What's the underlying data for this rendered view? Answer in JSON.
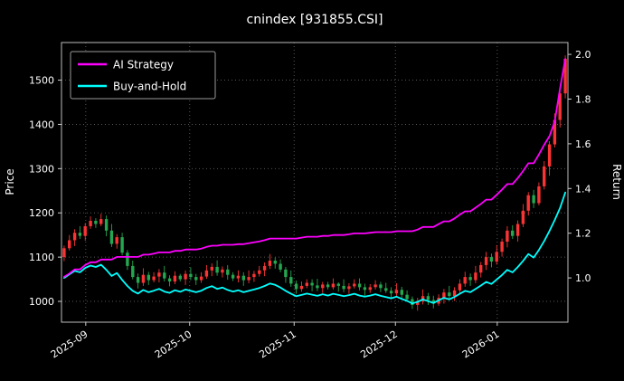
{
  "chart_data": {
    "type": "candlestick+line",
    "title": "cnindex [931855.CSI]",
    "ylabel_left": "Price",
    "ylabel_right": "Return",
    "grid": true,
    "background": "#000000",
    "price_ticks": [
      1000,
      1100,
      1200,
      1300,
      1400,
      1500
    ],
    "return_ticks": [
      1.0,
      1.2,
      1.4,
      1.6,
      1.8,
      2.0
    ],
    "price_lim": [
      953,
      1585
    ],
    "return_lim": [
      0.802,
      2.053
    ],
    "x_ticks": [
      {
        "pos": 4.1,
        "label": "2025-09"
      },
      {
        "pos": 23.8,
        "label": "2025-10"
      },
      {
        "pos": 43.6,
        "label": "2025-11"
      },
      {
        "pos": 62.8,
        "label": "2025-12"
      },
      {
        "pos": 82.1,
        "label": "2026-01"
      }
    ],
    "colors": {
      "candle_up": "#f93434",
      "candle_down": "#25a750",
      "grid": "#565656",
      "text": "#ffffff",
      "ai_strategy": "#ff00ff",
      "buy_and_hold": "#00ffff"
    },
    "legend": {
      "position": "upper-left",
      "entries": [
        {
          "label": "AI Strategy",
          "color": "#ff00ff"
        },
        {
          "label": "Buy-and-Hold",
          "color": "#00ffff"
        }
      ]
    },
    "dates": [
      "2025-08-25",
      "2025-08-26",
      "2025-08-27",
      "2025-08-28",
      "2025-08-29",
      "2025-09-01",
      "2025-09-02",
      "2025-09-03",
      "2025-09-04",
      "2025-09-05",
      "2025-09-08",
      "2025-09-09",
      "2025-09-10",
      "2025-09-11",
      "2025-09-12",
      "2025-09-15",
      "2025-09-16",
      "2025-09-17",
      "2025-09-18",
      "2025-09-19",
      "2025-09-22",
      "2025-09-23",
      "2025-09-24",
      "2025-09-25",
      "2025-09-26",
      "2025-09-29",
      "2025-09-30",
      "2025-10-09",
      "2025-10-10",
      "2025-10-13",
      "2025-10-14",
      "2025-10-15",
      "2025-10-16",
      "2025-10-17",
      "2025-10-20",
      "2025-10-21",
      "2025-10-22",
      "2025-10-23",
      "2025-10-24",
      "2025-10-27",
      "2025-10-28",
      "2025-10-29",
      "2025-10-30",
      "2025-10-31",
      "2025-11-03",
      "2025-11-04",
      "2025-11-05",
      "2025-11-06",
      "2025-11-07",
      "2025-11-10",
      "2025-11-11",
      "2025-11-12",
      "2025-11-13",
      "2025-11-14",
      "2025-11-17",
      "2025-11-18",
      "2025-11-19",
      "2025-11-20",
      "2025-11-21",
      "2025-11-24",
      "2025-11-25",
      "2025-11-26",
      "2025-11-27",
      "2025-11-28",
      "2025-12-01",
      "2025-12-02",
      "2025-12-03",
      "2025-12-04",
      "2025-12-05",
      "2025-12-08",
      "2025-12-09",
      "2025-12-10",
      "2025-12-11",
      "2025-12-12",
      "2025-12-15",
      "2025-12-16",
      "2025-12-17",
      "2025-12-18",
      "2025-12-19",
      "2025-12-22",
      "2025-12-23",
      "2025-12-24",
      "2025-12-25",
      "2025-12-26",
      "2025-12-29",
      "2025-12-30",
      "2025-12-31",
      "2026-01-02",
      "2026-01-05",
      "2026-01-06",
      "2026-01-07",
      "2026-01-08",
      "2026-01-09",
      "2026-01-12",
      "2026-01-13",
      "2026-01-14"
    ],
    "candles": [
      [
        1100,
        1126,
        1091,
        1120
      ],
      [
        1120,
        1150,
        1115,
        1138
      ],
      [
        1138,
        1163,
        1125,
        1155
      ],
      [
        1155,
        1170,
        1141,
        1148
      ],
      [
        1148,
        1177,
        1137,
        1170
      ],
      [
        1170,
        1192,
        1164,
        1182
      ],
      [
        1182,
        1188,
        1166,
        1175
      ],
      [
        1175,
        1198,
        1170,
        1186
      ],
      [
        1186,
        1194,
        1147,
        1160
      ],
      [
        1160,
        1175,
        1123,
        1130
      ],
      [
        1130,
        1152,
        1119,
        1145
      ],
      [
        1145,
        1155,
        1104,
        1110
      ],
      [
        1110,
        1116,
        1071,
        1080
      ],
      [
        1080,
        1092,
        1050,
        1055
      ],
      [
        1055,
        1063,
        1029,
        1042
      ],
      [
        1042,
        1075,
        1035,
        1060
      ],
      [
        1060,
        1067,
        1037,
        1048
      ],
      [
        1048,
        1066,
        1043,
        1056
      ],
      [
        1056,
        1073,
        1043,
        1065
      ],
      [
        1065,
        1080,
        1045,
        1052
      ],
      [
        1052,
        1059,
        1034,
        1045
      ],
      [
        1045,
        1068,
        1039,
        1058
      ],
      [
        1058,
        1062,
        1045,
        1050
      ],
      [
        1050,
        1070,
        1037,
        1062
      ],
      [
        1062,
        1077,
        1048,
        1055
      ],
      [
        1055,
        1062,
        1037,
        1048
      ],
      [
        1048,
        1066,
        1042,
        1056
      ],
      [
        1056,
        1082,
        1051,
        1070
      ],
      [
        1070,
        1086,
        1057,
        1078
      ],
      [
        1078,
        1093,
        1058,
        1065
      ],
      [
        1065,
        1079,
        1054,
        1072
      ],
      [
        1072,
        1082,
        1049,
        1060
      ],
      [
        1060,
        1066,
        1046,
        1052
      ],
      [
        1052,
        1070,
        1043,
        1058
      ],
      [
        1058,
        1066,
        1035,
        1048
      ],
      [
        1048,
        1070,
        1041,
        1055
      ],
      [
        1055,
        1069,
        1044,
        1062
      ],
      [
        1062,
        1080,
        1056,
        1070
      ],
      [
        1070,
        1088,
        1057,
        1080
      ],
      [
        1080,
        1107,
        1073,
        1092
      ],
      [
        1092,
        1099,
        1074,
        1085
      ],
      [
        1085,
        1095,
        1066,
        1072
      ],
      [
        1072,
        1078,
        1042,
        1055
      ],
      [
        1055,
        1070,
        1033,
        1040
      ],
      [
        1040,
        1047,
        1017,
        1028
      ],
      [
        1028,
        1045,
        1022,
        1035
      ],
      [
        1035,
        1050,
        1030,
        1042
      ],
      [
        1042,
        1050,
        1023,
        1036
      ],
      [
        1036,
        1051,
        1023,
        1030
      ],
      [
        1030,
        1044,
        1019,
        1038
      ],
      [
        1038,
        1044,
        1027,
        1032
      ],
      [
        1032,
        1052,
        1027,
        1040
      ],
      [
        1040,
        1043,
        1022,
        1035
      ],
      [
        1035,
        1050,
        1021,
        1028
      ],
      [
        1028,
        1041,
        1017,
        1034
      ],
      [
        1034,
        1050,
        1029,
        1040
      ],
      [
        1040,
        1052,
        1025,
        1032
      ],
      [
        1032,
        1040,
        1013,
        1026
      ],
      [
        1026,
        1039,
        1019,
        1032
      ],
      [
        1032,
        1048,
        1027,
        1038
      ],
      [
        1038,
        1044,
        1021,
        1030
      ],
      [
        1030,
        1042,
        1019,
        1024
      ],
      [
        1024,
        1032,
        1005,
        1018
      ],
      [
        1018,
        1041,
        1011,
        1026
      ],
      [
        1026,
        1033,
        1004,
        1015
      ],
      [
        1015,
        1025,
        999,
        1005
      ],
      [
        1005,
        1011,
        983,
        992
      ],
      [
        992,
        1008,
        979,
        1000
      ],
      [
        1000,
        1027,
        993,
        1012
      ],
      [
        1012,
        1019,
        992,
        1003
      ],
      [
        1003,
        1013,
        984,
        995
      ],
      [
        995,
        1016,
        990,
        1008
      ],
      [
        1008,
        1028,
        995,
        1020
      ],
      [
        1020,
        1035,
        1005,
        1012
      ],
      [
        1012,
        1032,
        1001,
        1025
      ],
      [
        1025,
        1050,
        1018,
        1040
      ],
      [
        1040,
        1067,
        1033,
        1055
      ],
      [
        1055,
        1063,
        1035,
        1048
      ],
      [
        1048,
        1080,
        1041,
        1065
      ],
      [
        1065,
        1089,
        1054,
        1082
      ],
      [
        1082,
        1112,
        1071,
        1100
      ],
      [
        1100,
        1108,
        1077,
        1090
      ],
      [
        1090,
        1127,
        1083,
        1112
      ],
      [
        1112,
        1142,
        1101,
        1135
      ],
      [
        1135,
        1170,
        1122,
        1160
      ],
      [
        1160,
        1172,
        1141,
        1148
      ],
      [
        1148,
        1183,
        1135,
        1175
      ],
      [
        1175,
        1220,
        1168,
        1205
      ],
      [
        1205,
        1247,
        1194,
        1240
      ],
      [
        1240,
        1252,
        1211,
        1222
      ],
      [
        1222,
        1269,
        1217,
        1260
      ],
      [
        1260,
        1317,
        1253,
        1305
      ],
      [
        1305,
        1362,
        1284,
        1355
      ],
      [
        1355,
        1425,
        1348,
        1410
      ],
      [
        1410,
        1477,
        1393,
        1470
      ],
      [
        1470,
        1556,
        1459,
        1548
      ]
    ],
    "series": [
      {
        "name": "AI Strategy",
        "axis": "return",
        "color": "#ff00ff",
        "values": [
          1.005,
          1.02,
          1.038,
          1.038,
          1.058,
          1.07,
          1.07,
          1.082,
          1.082,
          1.082,
          1.094,
          1.094,
          1.094,
          1.094,
          1.094,
          1.104,
          1.104,
          1.109,
          1.114,
          1.114,
          1.114,
          1.121,
          1.121,
          1.127,
          1.127,
          1.127,
          1.131,
          1.139,
          1.144,
          1.144,
          1.148,
          1.148,
          1.148,
          1.151,
          1.151,
          1.155,
          1.159,
          1.163,
          1.169,
          1.176,
          1.176,
          1.176,
          1.176,
          1.176,
          1.176,
          1.18,
          1.184,
          1.184,
          1.184,
          1.188,
          1.188,
          1.192,
          1.192,
          1.192,
          1.195,
          1.199,
          1.199,
          1.199,
          1.202,
          1.205,
          1.205,
          1.205,
          1.205,
          1.209,
          1.209,
          1.209,
          1.209,
          1.216,
          1.228,
          1.228,
          1.228,
          1.241,
          1.253,
          1.253,
          1.266,
          1.283,
          1.298,
          1.298,
          1.314,
          1.331,
          1.35,
          1.35,
          1.372,
          1.395,
          1.42,
          1.42,
          1.447,
          1.478,
          1.513,
          1.513,
          1.552,
          1.596,
          1.634,
          1.7,
          1.848,
          1.98
        ]
      },
      {
        "name": "Buy-and-Hold",
        "axis": "return",
        "color": "#00ffff",
        "values": [
          1.0,
          1.016,
          1.031,
          1.025,
          1.045,
          1.055,
          1.049,
          1.059,
          1.036,
          1.009,
          1.022,
          0.991,
          0.964,
          0.942,
          0.93,
          0.946,
          0.936,
          0.943,
          0.951,
          0.939,
          0.933,
          0.945,
          0.938,
          0.948,
          0.942,
          0.936,
          0.943,
          0.955,
          0.963,
          0.951,
          0.957,
          0.946,
          0.939,
          0.945,
          0.936,
          0.942,
          0.948,
          0.955,
          0.964,
          0.975,
          0.969,
          0.957,
          0.942,
          0.929,
          0.918,
          0.924,
          0.93,
          0.925,
          0.92,
          0.927,
          0.921,
          0.929,
          0.924,
          0.918,
          0.923,
          0.929,
          0.921,
          0.916,
          0.921,
          0.927,
          0.92,
          0.914,
          0.909,
          0.916,
          0.906,
          0.897,
          0.886,
          0.893,
          0.904,
          0.896,
          0.888,
          0.9,
          0.911,
          0.904,
          0.915,
          0.929,
          0.942,
          0.936,
          0.951,
          0.966,
          0.982,
          0.973,
          0.993,
          1.013,
          1.036,
          1.025,
          1.049,
          1.076,
          1.107,
          1.091,
          1.125,
          1.165,
          1.21,
          1.259,
          1.313,
          1.382
        ]
      }
    ]
  }
}
